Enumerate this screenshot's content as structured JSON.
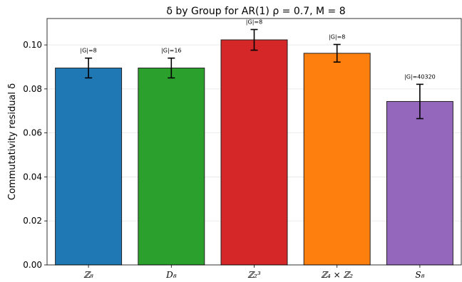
{
  "chart_data": {
    "type": "bar",
    "title": "δ by Group for AR(1) ρ = 0.7,  M = 8",
    "xlabel": "",
    "ylabel": "Commutativity residual δ",
    "ylim": [
      0,
      0.112
    ],
    "yticks": [
      "0.00",
      "0.02",
      "0.04",
      "0.06",
      "0.08",
      "0.10"
    ],
    "grid": "horizontal",
    "categories": [
      "ℤ₈",
      "D₈",
      "ℤ₂³",
      "ℤ₄ × ℤ₂",
      "S₈"
    ],
    "values": [
      0.0895,
      0.0895,
      0.1023,
      0.0962,
      0.0743
    ],
    "errors": [
      0.0045,
      0.0045,
      0.0047,
      0.004,
      0.0078
    ],
    "annotations": [
      "|G|=8",
      "|G|=16",
      "|G|=8",
      "|G|=8",
      "|G|=40320"
    ],
    "colors": [
      "#1f77b4",
      "#2ca02c",
      "#d62728",
      "#ff7f0e",
      "#9467bd"
    ]
  }
}
